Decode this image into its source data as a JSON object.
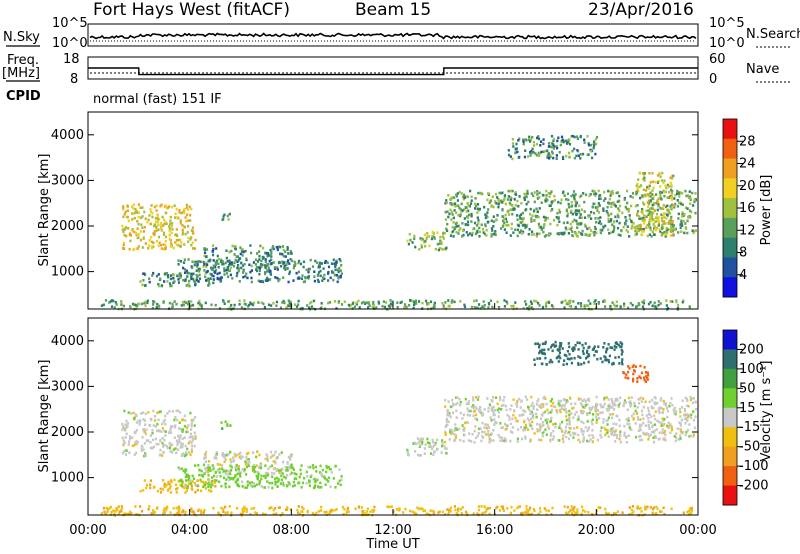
{
  "header": {
    "radar": "Fort Hays West (fitACF)",
    "beam": "Beam 15",
    "date": "23/Apr/2016"
  },
  "noise_panel": {
    "left_label": "N.Sky",
    "right_label": "N.Search",
    "ticks_left": [
      "10^5",
      "10^0"
    ],
    "ticks_right": [
      "10^5",
      "10^0"
    ]
  },
  "freq_panel": {
    "left_label_1": "Freq.",
    "left_label_2": "[MHz]",
    "right_label": "Nave",
    "ticks_left": [
      "18",
      "8"
    ],
    "ticks_right": [
      "60",
      "0"
    ],
    "freq_steps": [
      {
        "time": 0,
        "freq": 13
      },
      {
        "time": 2.0,
        "freq": 10
      },
      {
        "time": 14.0,
        "freq": 13
      },
      {
        "time": 24,
        "freq": 13
      }
    ]
  },
  "cpid": {
    "label": "CPID",
    "text": "normal (fast) 151 IF"
  },
  "chart_data": [
    {
      "type": "heatmap",
      "title": "Power",
      "ylabel": "Slant Range [km]",
      "xlabel": "Time UT",
      "xlim": [
        0,
        24
      ],
      "ylim": [
        180,
        4500
      ],
      "yticks": [
        "1000",
        "2000",
        "3000",
        "4000"
      ],
      "xticks": [
        "00:00",
        "04:00",
        "08:00",
        "12:00",
        "16:00",
        "20:00",
        "00:00"
      ],
      "colorbar": {
        "label": "Power [dB]",
        "ticks": [
          "4",
          "8",
          "12",
          "16",
          "20",
          "24",
          "28"
        ],
        "colors": [
          "#1010e0",
          "#2050a0",
          "#2f7f6f",
          "#5aa05a",
          "#a0c040",
          "#f0d020",
          "#f0a020",
          "#f06010",
          "#e81010"
        ]
      },
      "regions": [
        {
          "t0": 1.3,
          "t1": 4.2,
          "r0": 1500,
          "r1": 2500,
          "value": 20
        },
        {
          "t0": 2.0,
          "t1": 5.0,
          "r0": 700,
          "r1": 1000,
          "value": 10
        },
        {
          "t0": 4.5,
          "t1": 8.0,
          "r0": 1100,
          "r1": 1600,
          "value": 10
        },
        {
          "t0": 3.5,
          "t1": 10.0,
          "r0": 800,
          "r1": 1300,
          "value": 8
        },
        {
          "t0": 5.2,
          "t1": 5.6,
          "r0": 2100,
          "r1": 2300,
          "value": 12
        },
        {
          "t0": 12.5,
          "t1": 14.1,
          "r0": 1500,
          "r1": 1900,
          "value": 14
        },
        {
          "t0": 14.0,
          "t1": 23.9,
          "r0": 1800,
          "r1": 2800,
          "value": 12
        },
        {
          "t0": 16.5,
          "t1": 20.0,
          "r0": 3500,
          "r1": 4000,
          "value": 10
        },
        {
          "t0": 21.5,
          "t1": 23.0,
          "r0": 1800,
          "r1": 3200,
          "value": 18
        },
        {
          "t0": 0.5,
          "t1": 23.9,
          "r0": 200,
          "r1": 400,
          "value": 12
        }
      ]
    },
    {
      "type": "heatmap",
      "title": "Velocity",
      "ylabel": "Slant Range [km]",
      "xlabel": "Time UT",
      "xlim": [
        0,
        24
      ],
      "ylim": [
        180,
        4500
      ],
      "yticks": [
        "1000",
        "2000",
        "3000",
        "4000"
      ],
      "xticks": [
        "00:00",
        "04:00",
        "08:00",
        "12:00",
        "16:00",
        "20:00",
        "00:00"
      ],
      "colorbar": {
        "label": "Velocity [m s⁻¹]",
        "ticks": [
          "200",
          "100",
          "50",
          "15",
          "-15",
          "-50",
          "-100",
          "-200"
        ],
        "colors": [
          "#1010d0",
          "#2f6f6f",
          "#40a040",
          "#70d030",
          "#c8c8c8",
          "#f0c010",
          "#f0a020",
          "#f06010",
          "#e81010"
        ]
      },
      "regions": [
        {
          "t0": 1.3,
          "t1": 4.2,
          "r0": 1500,
          "r1": 2500,
          "value": 0
        },
        {
          "t0": 2.0,
          "t1": 5.0,
          "r0": 700,
          "r1": 1000,
          "value": -40
        },
        {
          "t0": 4.5,
          "t1": 8.0,
          "r0": 1100,
          "r1": 1600,
          "value": 0
        },
        {
          "t0": 3.5,
          "t1": 10.0,
          "r0": 800,
          "r1": 1300,
          "value": 30
        },
        {
          "t0": 5.2,
          "t1": 5.6,
          "r0": 2100,
          "r1": 2300,
          "value": 40
        },
        {
          "t0": 12.5,
          "t1": 14.1,
          "r0": 1500,
          "r1": 1900,
          "value": 10
        },
        {
          "t0": 14.0,
          "t1": 23.9,
          "r0": 1800,
          "r1": 2800,
          "value": 0
        },
        {
          "t0": 17.5,
          "t1": 21.0,
          "r0": 3500,
          "r1": 4000,
          "value": 150
        },
        {
          "t0": 21.0,
          "t1": 22.0,
          "r0": 3100,
          "r1": 3500,
          "value": -150
        },
        {
          "t0": 0.5,
          "t1": 23.9,
          "r0": 200,
          "r1": 400,
          "value": -40
        }
      ]
    }
  ]
}
